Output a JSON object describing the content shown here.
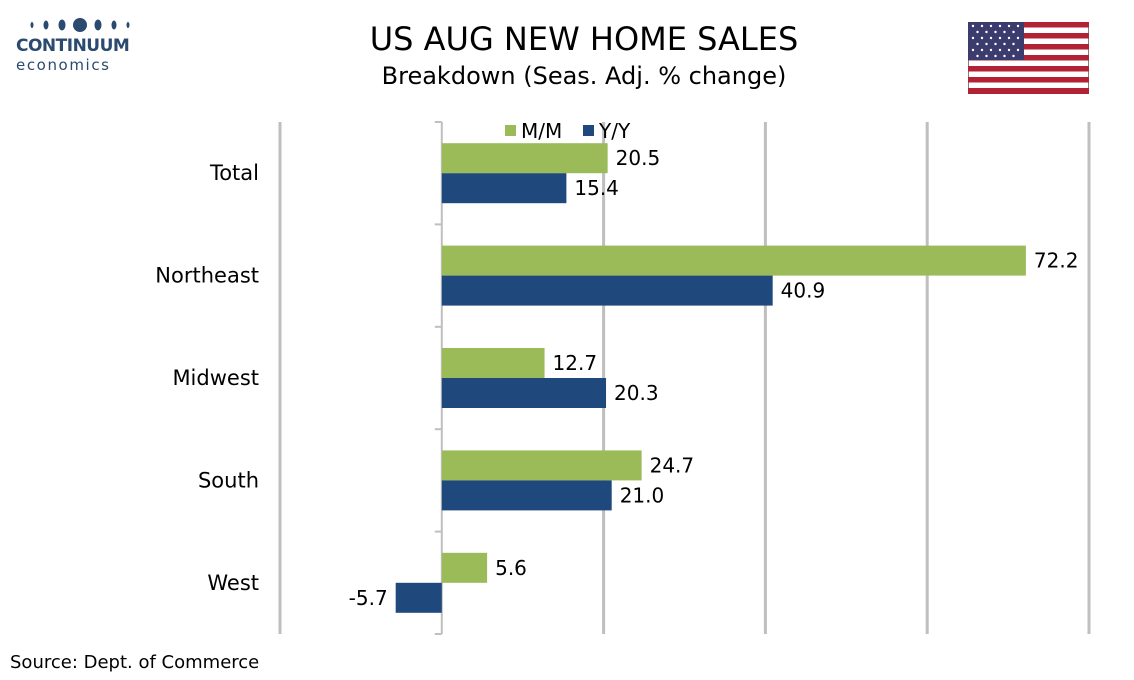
{
  "header": {
    "logo_word": "CONTINUUM",
    "logo_sub": "economics",
    "title": "US AUG NEW HOME SALES",
    "subtitle": "Breakdown (Seas. Adj. % change)"
  },
  "footer": {
    "source": "Source: Dept. of Commerce"
  },
  "colors": {
    "mm": "#9bbb59",
    "yy": "#1f497d",
    "grid": "#bfbfbf",
    "logo": "#2b4a6f"
  },
  "chart_data": {
    "type": "bar",
    "orientation": "horizontal",
    "categories": [
      "Total",
      "Northeast",
      "Midwest",
      "South",
      "West"
    ],
    "series": [
      {
        "name": "M/M",
        "values": [
          20.5,
          72.2,
          12.7,
          24.7,
          5.6
        ]
      },
      {
        "name": "Y/Y",
        "values": [
          15.4,
          40.9,
          20.3,
          21.0,
          -5.7
        ]
      }
    ],
    "value_labels": [
      [
        "20.5",
        "72.2",
        "12.7",
        "24.7",
        "5.6"
      ],
      [
        "15.4",
        "40.9",
        "20.3",
        "21.0",
        "-5.7"
      ]
    ],
    "xlim": [
      -20,
      80
    ],
    "grid": true,
    "legend_position": "top"
  }
}
